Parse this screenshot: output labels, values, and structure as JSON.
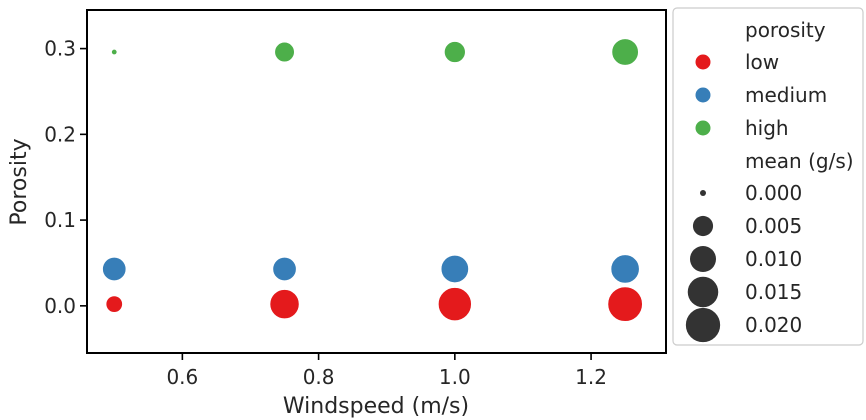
{
  "chart_data": {
    "type": "scatter",
    "title": "",
    "xlabel": "Windspeed (m/s)",
    "ylabel": "Porosity",
    "xlim": [
      0.46,
      1.31
    ],
    "ylim": [
      -0.055,
      0.345
    ],
    "xticks": [
      "0.6",
      "0.8",
      "1.0",
      "1.2"
    ],
    "xtick_values": [
      0.6,
      0.8,
      1.0,
      1.2
    ],
    "yticks": [
      "0.0",
      "0.1",
      "0.2",
      "0.3"
    ],
    "ytick_values": [
      0.0,
      0.1,
      0.2,
      0.3
    ],
    "grid": false,
    "legend_placement": "outside-right",
    "size_variable": "mean (g/s)",
    "series": [
      {
        "name": "low",
        "color": "#e41a1c",
        "points": [
          {
            "x": 0.5,
            "y": 0.002,
            "mean": 0.003
          },
          {
            "x": 0.75,
            "y": 0.002,
            "mean": 0.014
          },
          {
            "x": 1.0,
            "y": 0.002,
            "mean": 0.019
          },
          {
            "x": 1.25,
            "y": 0.002,
            "mean": 0.021
          }
        ]
      },
      {
        "name": "medium",
        "color": "#377eb8",
        "points": [
          {
            "x": 0.5,
            "y": 0.043,
            "mean": 0.008
          },
          {
            "x": 0.75,
            "y": 0.043,
            "mean": 0.008
          },
          {
            "x": 1.0,
            "y": 0.043,
            "mean": 0.012
          },
          {
            "x": 1.25,
            "y": 0.043,
            "mean": 0.013
          }
        ]
      },
      {
        "name": "high",
        "color": "#4daf4a",
        "points": [
          {
            "x": 0.5,
            "y": 0.296,
            "mean": 0.0
          },
          {
            "x": 0.75,
            "y": 0.296,
            "mean": 0.005
          },
          {
            "x": 1.0,
            "y": 0.296,
            "mean": 0.006
          },
          {
            "x": 1.25,
            "y": 0.296,
            "mean": 0.011
          }
        ]
      }
    ],
    "legend": {
      "hue_title": "porosity",
      "hue_entries": [
        {
          "label": "low",
          "color": "#e41a1c"
        },
        {
          "label": "medium",
          "color": "#377eb8"
        },
        {
          "label": "high",
          "color": "#4daf4a"
        }
      ],
      "size_title": "mean (g/s)",
      "size_entries": [
        {
          "label": "0.000",
          "value": 0.0
        },
        {
          "label": "0.005",
          "value": 0.005
        },
        {
          "label": "0.010",
          "value": 0.01
        },
        {
          "label": "0.015",
          "value": 0.015
        },
        {
          "label": "0.020",
          "value": 0.02
        }
      ],
      "size_marker_color": "#333333"
    }
  }
}
